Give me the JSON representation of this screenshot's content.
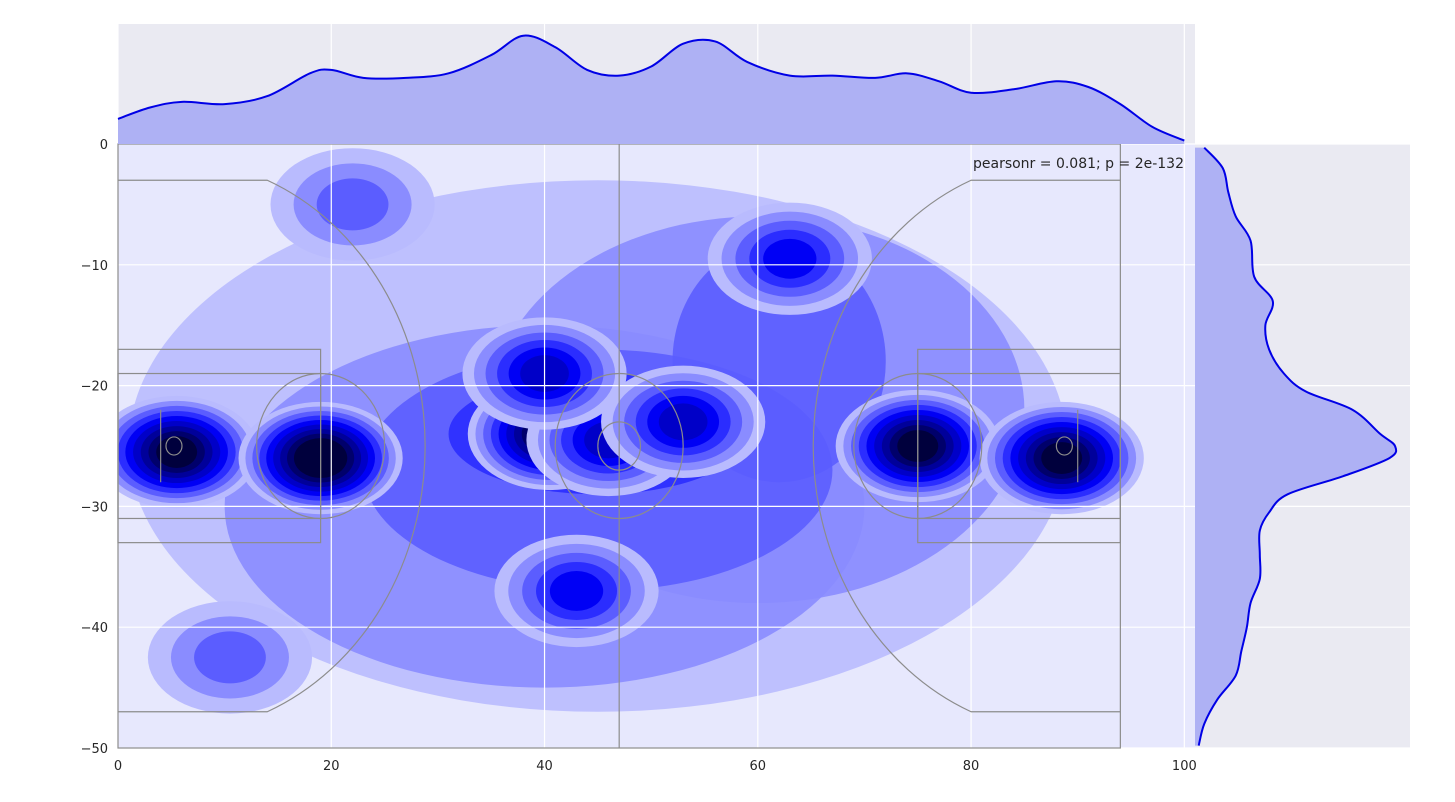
{
  "chart_data": {
    "type": "heatmap",
    "subtype": "jointplot-kde",
    "title": "",
    "xlabel": "",
    "ylabel": "",
    "xlim": [
      0,
      101
    ],
    "ylim": [
      -50,
      0
    ],
    "x_ticks": [
      0,
      20,
      40,
      60,
      80,
      100
    ],
    "y_ticks": [
      0,
      -10,
      -20,
      -30,
      -40,
      -50
    ],
    "grid": true,
    "annotation": "pearsonr = 0.081; p = 2e-132",
    "annotation_position": "top-right",
    "colors": {
      "kde_fill": "#0000ff",
      "marginal_fill": "#aeb1f4",
      "marginal_line": "#0000e6",
      "axes_bg": "#eaeaf2",
      "court_lines": "#8c8c8c"
    },
    "density_levels": [
      "#e7e8fd",
      "#b9bbfe",
      "#8a8cff",
      "#5b5dff",
      "#2b2dff",
      "#0000f5",
      "#0000c8",
      "#00009a",
      "#00006b",
      "#00003d"
    ],
    "hotspots": [
      {
        "x": 5.5,
        "y": -25.5,
        "peak": 9
      },
      {
        "x": 19,
        "y": -26,
        "peak": 10
      },
      {
        "x": 40.5,
        "y": -24,
        "peak": 9
      },
      {
        "x": 46,
        "y": -24.5,
        "peak": 6
      },
      {
        "x": 53,
        "y": -23,
        "peak": 6
      },
      {
        "x": 40,
        "y": -19,
        "peak": 6
      },
      {
        "x": 75,
        "y": -25,
        "peak": 9
      },
      {
        "x": 88.5,
        "y": -26,
        "peak": 9
      },
      {
        "x": 63,
        "y": -9.5,
        "peak": 5
      },
      {
        "x": 22,
        "y": -5,
        "peak": 3
      },
      {
        "x": 10.5,
        "y": -42.5,
        "peak": 3
      },
      {
        "x": 43,
        "y": -37,
        "peak": 5
      }
    ],
    "marginal_x": {
      "x": [
        0,
        3,
        6,
        10,
        14,
        18,
        20,
        23,
        27,
        31,
        35,
        38,
        41,
        44,
        47,
        50,
        53,
        56,
        59,
        63,
        67,
        71,
        74,
        77,
        80,
        84,
        88,
        91,
        94,
        97,
        100
      ],
      "density": [
        0.22,
        0.32,
        0.37,
        0.35,
        0.42,
        0.62,
        0.65,
        0.58,
        0.58,
        0.62,
        0.78,
        0.95,
        0.85,
        0.65,
        0.6,
        0.68,
        0.88,
        0.9,
        0.72,
        0.6,
        0.6,
        0.58,
        0.62,
        0.55,
        0.45,
        0.48,
        0.55,
        0.5,
        0.35,
        0.15,
        0.03
      ]
    },
    "marginal_y": {
      "y": [
        -0.3,
        -2,
        -4,
        -6,
        -8,
        -11,
        -13,
        -15,
        -17,
        -19,
        -20.5,
        -22,
        -24,
        -25,
        -26,
        -27.5,
        -29,
        -30.5,
        -32,
        -34,
        -36,
        -38,
        -40,
        -42,
        -44,
        -46,
        -48,
        -49.8
      ],
      "density": [
        0.05,
        0.15,
        0.18,
        0.22,
        0.3,
        0.32,
        0.42,
        0.38,
        0.4,
        0.48,
        0.6,
        0.85,
        1.0,
        1.08,
        1.05,
        0.8,
        0.5,
        0.4,
        0.35,
        0.35,
        0.35,
        0.3,
        0.28,
        0.25,
        0.22,
        0.12,
        0.05,
        0.02
      ]
    },
    "court": {
      "outline": {
        "x0": 0,
        "x1": 94,
        "y0": 0,
        "y1": -50
      },
      "midcourt_x": 47,
      "center_circle_r": [
        6,
        2
      ],
      "keys": [
        {
          "side": "left",
          "x0": 0,
          "x1": 19,
          "y0": -17,
          "y1": -33
        },
        {
          "side": "left_inner",
          "x0": 0,
          "x1": 19,
          "y0": -19,
          "y1": -31
        },
        {
          "side": "right",
          "x0": 75,
          "x1": 94,
          "y0": -17,
          "y1": -33
        },
        {
          "side": "right_inner",
          "x0": 75,
          "x1": 94,
          "y0": -19,
          "y1": -31
        }
      ],
      "ft_circles": [
        {
          "x": 19,
          "y": -25,
          "r": 6
        },
        {
          "x": 75,
          "y": -25,
          "r": 6
        }
      ],
      "hoops": [
        {
          "x": 5.25,
          "y": -25,
          "r": 0.75
        },
        {
          "x": 88.75,
          "y": -25,
          "r": 0.75
        }
      ],
      "backboards": [
        {
          "x": 4,
          "y0": -22,
          "y1": -28
        },
        {
          "x": 90,
          "y0": -22,
          "y1": -28
        }
      ],
      "three_point": [
        {
          "side": "left",
          "corner_x": 14,
          "top_y": -3,
          "bottom_y": -47
        },
        {
          "side": "right",
          "corner_x": 80,
          "top_y": -3,
          "bottom_y": -47
        }
      ]
    }
  }
}
